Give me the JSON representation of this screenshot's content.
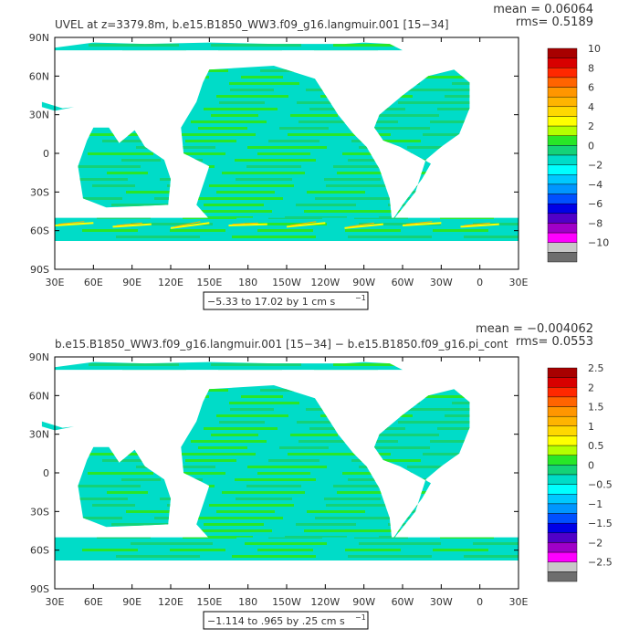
{
  "chart_data": [
    {
      "type": "heatmap",
      "title": "UVEL at z=3379.8m, b.e15.B1850_WW3.f09_g16.langmuir.001 [15−34]",
      "stats": {
        "mean": "mean = 0.06064",
        "rms": "rms=  0.5189"
      },
      "contour_note": "−5.33 to 17.02 by 1 cm s",
      "contour_unit_exp": "−1",
      "lon_ticks": [
        "30E",
        "60E",
        "90E",
        "120E",
        "150E",
        "180",
        "150W",
        "120W",
        "90W",
        "60W",
        "30W",
        "0",
        "30E"
      ],
      "lat_ticks": [
        "90N",
        "60N",
        "30N",
        "0",
        "30S",
        "60S",
        "90S"
      ],
      "colorbar": {
        "labels": [
          "10",
          "8",
          "6",
          "4",
          "2",
          "0",
          "−2",
          "−4",
          "−6",
          "−8",
          "−10"
        ],
        "colors": [
          "#a80000",
          "#d80000",
          "#ff2800",
          "#ff6400",
          "#ff9600",
          "#ffb400",
          "#ffd800",
          "#ffff00",
          "#b4ff00",
          "#28e628",
          "#14d278",
          "#00dcc8",
          "#00ffff",
          "#00c8ff",
          "#0096ff",
          "#0050ff",
          "#0000e6",
          "#5000c8",
          "#a000c8",
          "#ff00ff",
          "#c8c8c8",
          "#6e6e6e"
        ]
      }
    },
    {
      "type": "heatmap",
      "title": "b.e15.B1850_WW3.f09_g16.langmuir.001 [15−34] − b.e15.B1850.f09_g16.pi_cont",
      "stats": {
        "mean": "mean = −0.004062",
        "rms": "rms=  0.0553"
      },
      "contour_note": "−1.114 to .965 by .25 cm s",
      "contour_unit_exp": "−1",
      "lon_ticks": [
        "30E",
        "60E",
        "90E",
        "120E",
        "150E",
        "180",
        "150W",
        "120W",
        "90W",
        "60W",
        "30W",
        "0",
        "30E"
      ],
      "lat_ticks": [
        "90N",
        "60N",
        "30N",
        "0",
        "30S",
        "60S",
        "90S"
      ],
      "colorbar": {
        "labels": [
          "2.5",
          "2",
          "1.5",
          "1",
          "0.5",
          "0",
          "−0.5",
          "−1",
          "−1.5",
          "−2",
          "−2.5"
        ],
        "colors": [
          "#a80000",
          "#d80000",
          "#ff2800",
          "#ff6400",
          "#ff9600",
          "#ffb400",
          "#ffd800",
          "#ffff00",
          "#b4ff00",
          "#28e628",
          "#14d278",
          "#00dcc8",
          "#00ffff",
          "#00c8ff",
          "#0096ff",
          "#0050ff",
          "#0000e6",
          "#5000c8",
          "#a000c8",
          "#ff00ff",
          "#c8c8c8",
          "#6e6e6e"
        ]
      }
    }
  ]
}
